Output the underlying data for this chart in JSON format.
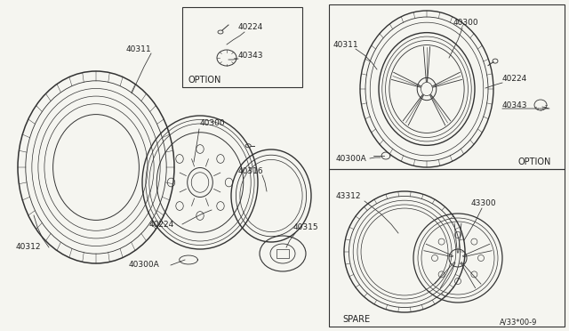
{
  "bg_color": "#f5f5f0",
  "fig_width": 6.4,
  "fig_height": 3.72,
  "dpi": 100,
  "label_color": "#222222",
  "line_color": "#333333",
  "parts": {
    "label_40311": "40311",
    "label_40312": "40312",
    "label_40300": "40300",
    "label_40300A": "40300A",
    "label_40224": "40224",
    "label_40316": "40316",
    "label_40315": "40315",
    "label_40343": "40343",
    "label_option": "OPTION",
    "label_spare": "SPARE",
    "label_43312": "43312",
    "label_43300": "43300",
    "label_ref": "A/33*00-9"
  }
}
